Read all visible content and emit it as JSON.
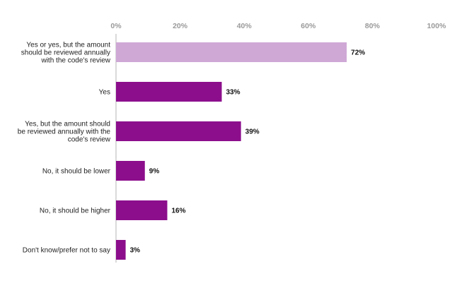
{
  "chart_data": {
    "type": "bar",
    "orientation": "horizontal",
    "categories": [
      [
        "Yes or yes, but the amount",
        "should be reviewed annually",
        "with the code's review"
      ],
      [
        "Yes"
      ],
      [
        "Yes, but the amount should",
        "be reviewed annually with the",
        "code's review"
      ],
      [
        "No, it should be lower"
      ],
      [
        "No, it should be higher"
      ],
      [
        "Don't know/prefer not to say"
      ]
    ],
    "values": [
      72,
      33,
      39,
      9,
      16,
      3
    ],
    "value_labels": [
      "72%",
      "33%",
      "39%",
      "9%",
      "16%",
      "3%"
    ],
    "xlim": [
      0,
      100
    ],
    "xticks": [
      0,
      20,
      40,
      60,
      80,
      100
    ],
    "xtick_labels": [
      "0%",
      "20%",
      "40%",
      "60%",
      "80%",
      "100%"
    ],
    "axis_position": "top",
    "grid": false,
    "colors": [
      "#cfa8d6",
      "#8c0e8c",
      "#8c0e8c",
      "#8c0e8c",
      "#8c0e8c",
      "#8c0e8c"
    ]
  }
}
